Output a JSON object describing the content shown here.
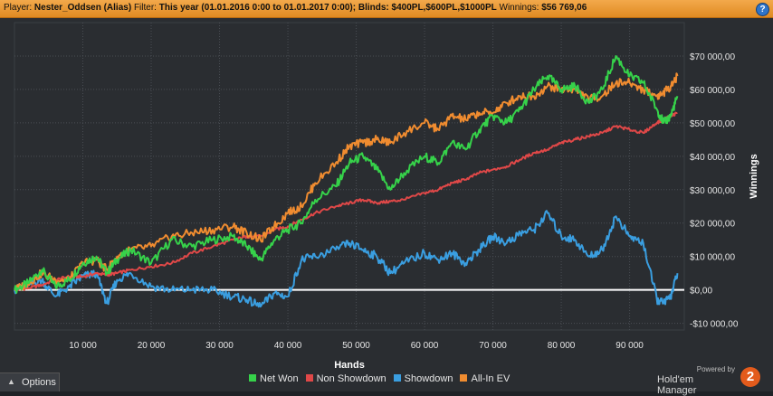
{
  "header": {
    "player_label": "Player:",
    "player": "Nester_Oddsen (Alias)",
    "filter_label": "Filter:",
    "filter": "This year (01.01.2016 0:00 to 01.01.2017 0:00); Blinds: $400PL,$600PL,$1000PL",
    "winnings_label": "Winnings:",
    "winnings": "$56 769,06",
    "help": "?"
  },
  "footer": {
    "options_label": "Options",
    "options_caret": "▲",
    "powered_by": "Powered by",
    "brand_name": "Hold'em Manager",
    "brand_badge": "2"
  },
  "colors": {
    "background": "#2a2d31",
    "grid": "#4a4e54",
    "header": "#f0a040",
    "net_won": "#36d24a",
    "non_showdown": "#e04848",
    "showdown": "#3a9ee0",
    "all_in_ev": "#f08c30",
    "zero_line": "#ffffff"
  },
  "chart_data": {
    "type": "line",
    "xlabel": "Hands",
    "ylabel": "Winnings",
    "xlim": [
      0,
      98000
    ],
    "ylim": [
      -12000,
      80000
    ],
    "x_ticks": [
      10000,
      20000,
      30000,
      40000,
      50000,
      60000,
      70000,
      80000,
      90000
    ],
    "x_tick_labels": [
      "10 000",
      "20 000",
      "30 000",
      "40 000",
      "50 000",
      "60 000",
      "70 000",
      "80 000",
      "90 000"
    ],
    "y_ticks": [
      -10000,
      0,
      10000,
      20000,
      30000,
      40000,
      50000,
      60000,
      70000
    ],
    "y_tick_labels": [
      "-$10 000,00",
      "$0,00",
      "$10 000,00",
      "$20 000,00",
      "$30 000,00",
      "$40 000,00",
      "$50 000,00",
      "$60 000,00",
      "$70 000,00"
    ],
    "grid": true,
    "legend_position": "bottom",
    "x": [
      0,
      2000,
      4000,
      6000,
      8000,
      10000,
      12000,
      13500,
      15000,
      17000,
      20000,
      23000,
      26000,
      29000,
      32000,
      34000,
      36000,
      38000,
      40000,
      42000,
      44000,
      47000,
      49000,
      51000,
      53000,
      55000,
      57000,
      60000,
      62000,
      64000,
      66000,
      68000,
      70000,
      72000,
      74000,
      76000,
      78000,
      80000,
      82000,
      84000,
      86000,
      88000,
      90000,
      92000,
      94000,
      95000,
      96000,
      97000
    ],
    "series": [
      {
        "name": "Net Won",
        "color": "#36d24a",
        "values": [
          0,
          2000,
          6000,
          1000,
          3000,
          8000,
          10000,
          5000,
          9000,
          12000,
          8000,
          15000,
          13000,
          15000,
          16000,
          13000,
          9000,
          15000,
          18000,
          20000,
          27000,
          31000,
          38000,
          40000,
          36000,
          30000,
          35000,
          40000,
          38000,
          44000,
          42000,
          48000,
          52000,
          50000,
          54000,
          60000,
          64000,
          60000,
          61000,
          56000,
          60000,
          70000,
          64000,
          62000,
          54000,
          50000,
          52000,
          58000
        ]
      },
      {
        "name": "Non Showdown",
        "color": "#e04848",
        "values": [
          0,
          500,
          1500,
          3000,
          4000,
          4000,
          5000,
          4500,
          5000,
          6000,
          7000,
          8000,
          11000,
          13000,
          15000,
          16000,
          16000,
          18000,
          19000,
          21000,
          23000,
          25000,
          26000,
          27000,
          26000,
          26500,
          27000,
          29000,
          30000,
          32000,
          33000,
          35000,
          36000,
          37000,
          39000,
          41000,
          42000,
          44000,
          45000,
          46000,
          47000,
          49000,
          48000,
          47000,
          50000,
          51000,
          52000,
          53000
        ]
      },
      {
        "name": "Showdown",
        "color": "#3a9ee0",
        "values": [
          0,
          1500,
          3000,
          -2000,
          1000,
          4000,
          5000,
          -4000,
          3000,
          5000,
          1000,
          0,
          0,
          0,
          -2000,
          -3000,
          -5000,
          -1000,
          -2000,
          9000,
          10000,
          12000,
          14000,
          12000,
          10000,
          5000,
          8000,
          11000,
          9000,
          11000,
          8000,
          12000,
          16000,
          14000,
          17000,
          18000,
          23000,
          16000,
          15000,
          10000,
          12000,
          22000,
          16000,
          14000,
          -3000,
          -4000,
          -2000,
          5000
        ]
      },
      {
        "name": "All-In EV",
        "color": "#f08c30",
        "values": [
          0,
          2000,
          5000,
          3000,
          3000,
          8000,
          9000,
          6000,
          10000,
          12000,
          13000,
          16000,
          17000,
          18000,
          19000,
          17000,
          15000,
          19000,
          23000,
          25000,
          32000,
          38000,
          43000,
          44000,
          45000,
          44000,
          47000,
          50000,
          48000,
          52000,
          51000,
          53000,
          53000,
          56000,
          58000,
          58000,
          61000,
          60000,
          60000,
          57000,
          58000,
          62000,
          62000,
          60000,
          58000,
          59000,
          61000,
          64000
        ]
      }
    ]
  }
}
